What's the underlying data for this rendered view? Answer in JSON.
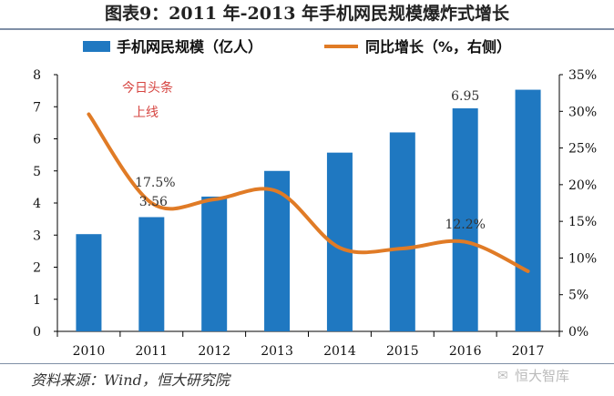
{
  "title": "图表9：2011 年-2013 年手机网民规模爆炸式增长",
  "source": "资料来源：Wind，恒大研究院",
  "watermark": "恒大智库",
  "annotation": [
    "今日头条",
    "上线"
  ],
  "colors": {
    "bar": "#1f78c1",
    "line": "#e07b26",
    "annotation": "#d64541"
  },
  "chart_data": {
    "type": "bar+line",
    "categories": [
      "2010",
      "2011",
      "2012",
      "2013",
      "2014",
      "2015",
      "2016",
      "2017"
    ],
    "series": [
      {
        "name": "手机网民规模（亿人）",
        "type": "bar",
        "axis": "left",
        "values": [
          3.03,
          3.56,
          4.2,
          5.0,
          5.57,
          6.2,
          6.95,
          7.53
        ]
      },
      {
        "name": "同比增长（%，右侧）",
        "type": "line",
        "axis": "right",
        "values": [
          29.6,
          17.5,
          18.0,
          19.1,
          11.4,
          11.3,
          12.2,
          8.2
        ]
      }
    ],
    "y_left": {
      "min": 0,
      "max": 8,
      "ticks": [
        "0",
        "1",
        "2",
        "3",
        "4",
        "5",
        "6",
        "7",
        "8"
      ]
    },
    "y_right": {
      "min": 0,
      "max": 35,
      "ticks": [
        "0%",
        "5%",
        "10%",
        "15%",
        "20%",
        "25%",
        "30%",
        "35%"
      ]
    },
    "data_labels": [
      {
        "text": "17.5%",
        "category": "2011",
        "series": "line"
      },
      {
        "text": "3.56",
        "category": "2011",
        "series": "bar"
      },
      {
        "text": "6.95",
        "category": "2016",
        "series": "bar"
      },
      {
        "text": "12.2%",
        "category": "2016",
        "series": "line"
      }
    ],
    "legend": "top"
  }
}
